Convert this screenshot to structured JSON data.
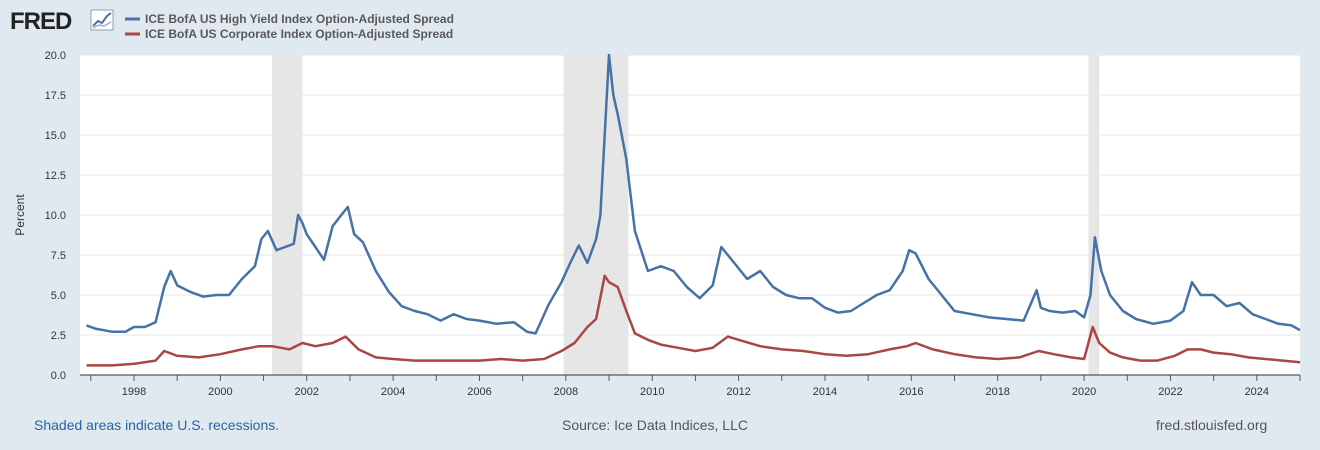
{
  "header": {
    "logo_text": "FRED"
  },
  "footer": {
    "recession_note": "Shaded areas indicate U.S. recessions.",
    "source": "Source: Ice Data Indices, LLC",
    "site": "fred.stlouisfed.org"
  },
  "colors": {
    "background": "#e1e9f0",
    "plot_background": "#ffffff",
    "high_yield": "#4572a7",
    "corporate": "#aa4643",
    "recession_shade": "#e6e6e6",
    "grid": "#e6e6e6"
  },
  "chart_data": {
    "type": "line",
    "title": "",
    "xlabel": "",
    "ylabel": "Percent",
    "xlim": [
      1996.75,
      2025.0
    ],
    "ylim": [
      0,
      20
    ],
    "x_ticks": [
      1998,
      2000,
      2002,
      2004,
      2006,
      2008,
      2010,
      2012,
      2014,
      2016,
      2018,
      2020,
      2022,
      2024
    ],
    "x_tick_labels": [
      "1998",
      "2000",
      "2002",
      "2004",
      "2006",
      "2008",
      "2010",
      "2012",
      "2014",
      "2016",
      "2018",
      "2020",
      "2022",
      "2024"
    ],
    "y_ticks": [
      0,
      2.5,
      5,
      7.5,
      10,
      12.5,
      15,
      17.5,
      20
    ],
    "y_tick_labels": [
      "0.0",
      "2.5",
      "5.0",
      "7.5",
      "10.0",
      "12.5",
      "15.0",
      "17.5",
      "20.0"
    ],
    "grid": "horizontal",
    "legend_position": "top-left",
    "recessions": [
      [
        2001.2,
        2001.9
      ],
      [
        2007.95,
        2009.45
      ],
      [
        2020.1,
        2020.35
      ]
    ],
    "series": [
      {
        "name": "ICE BofA US High Yield Index Option-Adjusted Spread",
        "x": [
          1996.9,
          1997.1,
          1997.3,
          1997.5,
          1997.8,
          1998.0,
          1998.25,
          1998.5,
          1998.7,
          1998.85,
          1999.0,
          1999.3,
          1999.6,
          1999.9,
          2000.2,
          2000.5,
          2000.8,
          2000.95,
          2001.1,
          2001.3,
          2001.5,
          2001.7,
          2001.8,
          2001.9,
          2002.0,
          2002.2,
          2002.4,
          2002.6,
          2002.8,
          2002.95,
          2003.1,
          2003.3,
          2003.6,
          2003.9,
          2004.2,
          2004.5,
          2004.8,
          2005.1,
          2005.4,
          2005.7,
          2006.0,
          2006.4,
          2006.8,
          2007.1,
          2007.3,
          2007.6,
          2007.9,
          2008.1,
          2008.3,
          2008.5,
          2008.7,
          2008.8,
          2008.9,
          2009.0,
          2009.1,
          2009.2,
          2009.4,
          2009.6,
          2009.9,
          2010.2,
          2010.5,
          2010.8,
          2011.1,
          2011.4,
          2011.6,
          2011.75,
          2011.9,
          2012.2,
          2012.5,
          2012.8,
          2013.1,
          2013.4,
          2013.7,
          2014.0,
          2014.3,
          2014.6,
          2014.9,
          2015.2,
          2015.5,
          2015.8,
          2015.95,
          2016.1,
          2016.4,
          2016.7,
          2017.0,
          2017.4,
          2017.8,
          2018.2,
          2018.6,
          2018.9,
          2019.0,
          2019.2,
          2019.5,
          2019.8,
          2020.0,
          2020.15,
          2020.25,
          2020.4,
          2020.6,
          2020.9,
          2021.2,
          2021.6,
          2022.0,
          2022.3,
          2022.5,
          2022.7,
          2023.0,
          2023.3,
          2023.6,
          2023.9,
          2024.2,
          2024.5,
          2024.8,
          2025.0
        ],
        "values": [
          3.1,
          2.9,
          2.8,
          2.7,
          2.7,
          3.0,
          3.0,
          3.3,
          5.5,
          6.5,
          5.6,
          5.2,
          4.9,
          5.0,
          5.0,
          6.0,
          6.8,
          8.5,
          9.0,
          7.8,
          8.0,
          8.2,
          10.0,
          9.5,
          8.8,
          8.0,
          7.2,
          9.3,
          10.0,
          10.5,
          8.8,
          8.3,
          6.5,
          5.2,
          4.3,
          4.0,
          3.8,
          3.4,
          3.8,
          3.5,
          3.4,
          3.2,
          3.3,
          2.7,
          2.6,
          4.4,
          5.8,
          7.0,
          8.1,
          7.0,
          8.5,
          10.0,
          15.0,
          20.0,
          17.5,
          16.3,
          13.5,
          9.0,
          6.5,
          6.8,
          6.5,
          5.5,
          4.8,
          5.6,
          8.0,
          7.5,
          7.0,
          6.0,
          6.5,
          5.5,
          5.0,
          4.8,
          4.8,
          4.2,
          3.9,
          4.0,
          4.5,
          5.0,
          5.3,
          6.5,
          7.8,
          7.6,
          6.0,
          5.0,
          4.0,
          3.8,
          3.6,
          3.5,
          3.4,
          5.3,
          4.2,
          4.0,
          3.9,
          4.0,
          3.6,
          5.0,
          8.6,
          6.5,
          5.0,
          4.0,
          3.5,
          3.2,
          3.4,
          4.0,
          5.8,
          5.0,
          5.0,
          4.3,
          4.5,
          3.8,
          3.5,
          3.2,
          3.1,
          2.8
        ]
      },
      {
        "name": "ICE BofA US Corporate Index Option-Adjusted Spread",
        "x": [
          1996.9,
          1997.5,
          1998.0,
          1998.5,
          1998.7,
          1999.0,
          1999.5,
          2000.0,
          2000.5,
          2000.9,
          2001.2,
          2001.6,
          2001.9,
          2002.2,
          2002.6,
          2002.9,
          2003.2,
          2003.6,
          2004.0,
          2004.5,
          2005.0,
          2005.5,
          2006.0,
          2006.5,
          2007.0,
          2007.5,
          2007.9,
          2008.2,
          2008.5,
          2008.7,
          2008.9,
          2009.0,
          2009.2,
          2009.4,
          2009.6,
          2009.9,
          2010.2,
          2010.6,
          2011.0,
          2011.4,
          2011.75,
          2012.0,
          2012.5,
          2013.0,
          2013.5,
          2014.0,
          2014.5,
          2015.0,
          2015.5,
          2015.9,
          2016.1,
          2016.5,
          2017.0,
          2017.5,
          2018.0,
          2018.5,
          2018.95,
          2019.3,
          2019.7,
          2020.0,
          2020.2,
          2020.35,
          2020.6,
          2020.9,
          2021.3,
          2021.7,
          2022.1,
          2022.4,
          2022.7,
          2023.0,
          2023.4,
          2023.8,
          2024.2,
          2024.6,
          2025.0
        ],
        "values": [
          0.6,
          0.6,
          0.7,
          0.9,
          1.5,
          1.2,
          1.1,
          1.3,
          1.6,
          1.8,
          1.8,
          1.6,
          2.0,
          1.8,
          2.0,
          2.4,
          1.6,
          1.1,
          1.0,
          0.9,
          0.9,
          0.9,
          0.9,
          1.0,
          0.9,
          1.0,
          1.5,
          2.0,
          3.0,
          3.5,
          6.2,
          5.8,
          5.5,
          4.0,
          2.6,
          2.2,
          1.9,
          1.7,
          1.5,
          1.7,
          2.4,
          2.2,
          1.8,
          1.6,
          1.5,
          1.3,
          1.2,
          1.3,
          1.6,
          1.8,
          2.0,
          1.6,
          1.3,
          1.1,
          1.0,
          1.1,
          1.5,
          1.3,
          1.1,
          1.0,
          3.0,
          2.0,
          1.4,
          1.1,
          0.9,
          0.9,
          1.2,
          1.6,
          1.6,
          1.4,
          1.3,
          1.1,
          1.0,
          0.9,
          0.8
        ]
      }
    ]
  }
}
